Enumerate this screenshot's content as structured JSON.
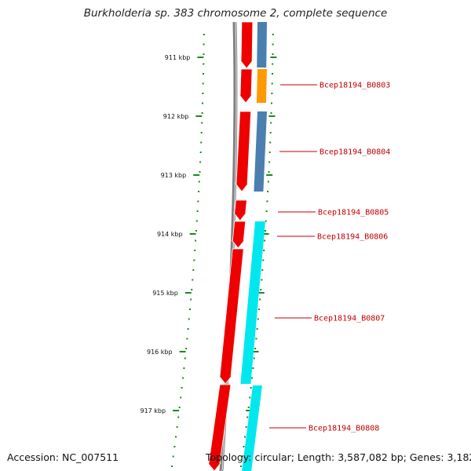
{
  "title": "Burkholderia sp. 383 chromosome 2, complete sequence",
  "accession": "Accession: NC_007511",
  "stats": "Topology: circular; Length: 3,587,082 bp; Genes: 3,182",
  "colors": {
    "ticks": "#1a8a1a",
    "backbone": "#808080",
    "cds": "#ee0000",
    "gene_blue": "#4a7fb0",
    "gene_orange": "#ff9900",
    "gene_cyan": "#00e8ee",
    "label": "#c00000"
  },
  "scale": {
    "unit": "kbp",
    "major_ticks_kbp": [
      911,
      912,
      913,
      914,
      915,
      916,
      917
    ],
    "major_labels": [
      "911 kbp",
      "912 kbp",
      "913 kbp",
      "914 kbp",
      "915 kbp",
      "916 kbp",
      "917 kbp"
    ]
  },
  "genes": [
    {
      "label": "Bcep18194_B0803",
      "color_key": "gene_orange"
    },
    {
      "label": "Bcep18194_B0804",
      "color_key": "gene_blue"
    },
    {
      "label": "Bcep18194_B0805",
      "color_key": "gene_blue"
    },
    {
      "label": "Bcep18194_B0806",
      "color_key": "gene_cyan"
    },
    {
      "label": "Bcep18194_B0807",
      "color_key": "gene_cyan"
    },
    {
      "label": "Bcep18194_B0808",
      "color_key": "gene_cyan"
    }
  ]
}
